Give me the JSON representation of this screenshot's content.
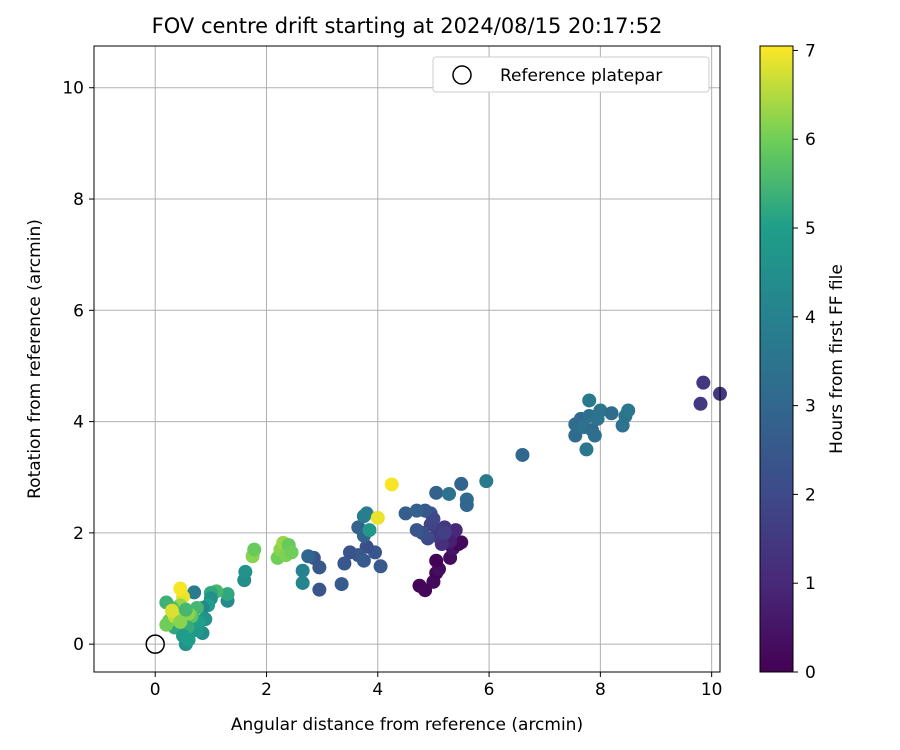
{
  "chart_data": {
    "type": "scatter",
    "title": "FOV centre drift starting at 2024/08/15 20:17:52",
    "xlabel": "Angular distance from reference (arcmin)",
    "ylabel": "Rotation from reference (arcmin)",
    "xlim": [
      -1.1,
      10.15
    ],
    "ylim": [
      -0.5,
      10.75
    ],
    "xticks": [
      0,
      2,
      4,
      6,
      8,
      10
    ],
    "yticks": [
      0,
      2,
      4,
      6,
      8,
      10
    ],
    "grid": true,
    "legend": {
      "position": "top-right",
      "entries": [
        "Reference platepar"
      ]
    },
    "reference_point": {
      "x": 0,
      "y": 0,
      "label": "Reference platepar"
    },
    "colorbar": {
      "label": "Hours from first FF file",
      "colormap": "viridis",
      "range": [
        0,
        7.05
      ],
      "ticks": [
        0,
        1,
        2,
        3,
        4,
        5,
        6,
        7
      ]
    },
    "points": [
      {
        "x": 4.75,
        "y": 1.05,
        "c": 0.1
      },
      {
        "x": 4.85,
        "y": 0.97,
        "c": 0.15
      },
      {
        "x": 5.0,
        "y": 1.12,
        "c": 0.2
      },
      {
        "x": 5.05,
        "y": 1.28,
        "c": 0.1
      },
      {
        "x": 5.1,
        "y": 1.35,
        "c": 0.3
      },
      {
        "x": 5.05,
        "y": 1.5,
        "c": 0.05
      },
      {
        "x": 5.3,
        "y": 1.55,
        "c": 0.3
      },
      {
        "x": 5.35,
        "y": 1.72,
        "c": 0.5
      },
      {
        "x": 5.45,
        "y": 1.8,
        "c": 0.1
      },
      {
        "x": 5.5,
        "y": 1.83,
        "c": 0.2
      },
      {
        "x": 5.4,
        "y": 2.05,
        "c": 1.0
      },
      {
        "x": 5.3,
        "y": 1.85,
        "c": 0.8
      },
      {
        "x": 5.15,
        "y": 1.8,
        "c": 1.2
      },
      {
        "x": 5.2,
        "y": 2.1,
        "c": 1.4
      },
      {
        "x": 5.1,
        "y": 2.05,
        "c": 1.6
      },
      {
        "x": 5.05,
        "y": 1.95,
        "c": 1.5
      },
      {
        "x": 4.95,
        "y": 2.15,
        "c": 1.8
      },
      {
        "x": 4.9,
        "y": 1.9,
        "c": 2.0
      },
      {
        "x": 4.8,
        "y": 2.0,
        "c": 2.2
      },
      {
        "x": 4.95,
        "y": 2.35,
        "c": 2.3
      },
      {
        "x": 5.0,
        "y": 2.25,
        "c": 1.9
      },
      {
        "x": 5.2,
        "y": 2.0,
        "c": 1.7
      },
      {
        "x": 4.7,
        "y": 2.05,
        "c": 2.4
      },
      {
        "x": 4.85,
        "y": 2.4,
        "c": 2.5
      },
      {
        "x": 5.05,
        "y": 2.72,
        "c": 2.8
      },
      {
        "x": 5.28,
        "y": 2.7,
        "c": 3.5
      },
      {
        "x": 5.5,
        "y": 2.88,
        "c": 2.9
      },
      {
        "x": 5.6,
        "y": 2.6,
        "c": 3.1
      },
      {
        "x": 5.6,
        "y": 2.5,
        "c": 3.0
      },
      {
        "x": 5.95,
        "y": 2.93,
        "c": 3.7
      },
      {
        "x": 6.6,
        "y": 3.4,
        "c": 3.0
      },
      {
        "x": 4.5,
        "y": 2.35,
        "c": 2.7
      },
      {
        "x": 4.7,
        "y": 2.4,
        "c": 2.8
      },
      {
        "x": 4.05,
        "y": 1.4,
        "c": 2.6
      },
      {
        "x": 3.95,
        "y": 1.65,
        "c": 2.4
      },
      {
        "x": 3.8,
        "y": 1.75,
        "c": 2.2
      },
      {
        "x": 3.65,
        "y": 1.6,
        "c": 2.5
      },
      {
        "x": 3.75,
        "y": 1.5,
        "c": 2.6
      },
      {
        "x": 3.5,
        "y": 1.65,
        "c": 2.3
      },
      {
        "x": 3.4,
        "y": 1.45,
        "c": 2.5
      },
      {
        "x": 3.35,
        "y": 1.08,
        "c": 2.6
      },
      {
        "x": 2.95,
        "y": 0.98,
        "c": 2.4
      },
      {
        "x": 2.95,
        "y": 1.38,
        "c": 2.5
      },
      {
        "x": 2.85,
        "y": 1.55,
        "c": 2.4
      },
      {
        "x": 2.75,
        "y": 1.58,
        "c": 3.0
      },
      {
        "x": 3.65,
        "y": 2.1,
        "c": 2.8
      },
      {
        "x": 3.75,
        "y": 1.95,
        "c": 2.9
      },
      {
        "x": 3.75,
        "y": 2.3,
        "c": 3.8
      },
      {
        "x": 3.8,
        "y": 2.35,
        "c": 3.9
      },
      {
        "x": 3.85,
        "y": 2.05,
        "c": 4.8
      },
      {
        "x": 2.65,
        "y": 1.32,
        "c": 4.0
      },
      {
        "x": 2.65,
        "y": 1.1,
        "c": 4.1
      },
      {
        "x": 4.0,
        "y": 2.27,
        "c": 6.9
      },
      {
        "x": 4.25,
        "y": 2.87,
        "c": 7.0
      },
      {
        "x": 7.55,
        "y": 3.75,
        "c": 3.1
      },
      {
        "x": 7.55,
        "y": 3.95,
        "c": 3.2
      },
      {
        "x": 7.65,
        "y": 4.05,
        "c": 3.1
      },
      {
        "x": 7.7,
        "y": 3.9,
        "c": 3.4
      },
      {
        "x": 7.75,
        "y": 3.5,
        "c": 3.6
      },
      {
        "x": 7.8,
        "y": 4.1,
        "c": 3.3
      },
      {
        "x": 7.8,
        "y": 4.38,
        "c": 3.7
      },
      {
        "x": 7.85,
        "y": 3.85,
        "c": 3.2
      },
      {
        "x": 7.9,
        "y": 3.75,
        "c": 3.3
      },
      {
        "x": 7.95,
        "y": 4.05,
        "c": 3.4
      },
      {
        "x": 8.0,
        "y": 4.2,
        "c": 3.5
      },
      {
        "x": 8.2,
        "y": 4.15,
        "c": 3.2
      },
      {
        "x": 8.4,
        "y": 3.93,
        "c": 3.4
      },
      {
        "x": 8.45,
        "y": 4.1,
        "c": 3.5
      },
      {
        "x": 8.5,
        "y": 4.2,
        "c": 3.6
      },
      {
        "x": 9.8,
        "y": 4.32,
        "c": 1.5
      },
      {
        "x": 9.85,
        "y": 4.7,
        "c": 1.4
      },
      {
        "x": 10.15,
        "y": 4.5,
        "c": 1.5
      },
      {
        "x": 1.6,
        "y": 1.15,
        "c": 4.4
      },
      {
        "x": 1.62,
        "y": 1.3,
        "c": 4.6
      },
      {
        "x": 1.75,
        "y": 1.58,
        "c": 6.2
      },
      {
        "x": 1.78,
        "y": 1.7,
        "c": 5.9
      },
      {
        "x": 2.2,
        "y": 1.55,
        "c": 6.0
      },
      {
        "x": 2.25,
        "y": 1.7,
        "c": 6.2
      },
      {
        "x": 2.3,
        "y": 1.82,
        "c": 6.3
      },
      {
        "x": 2.35,
        "y": 1.6,
        "c": 6.1
      },
      {
        "x": 2.4,
        "y": 1.78,
        "c": 5.9
      },
      {
        "x": 2.45,
        "y": 1.65,
        "c": 6.0
      },
      {
        "x": 1.3,
        "y": 0.78,
        "c": 4.3
      },
      {
        "x": 1.3,
        "y": 0.9,
        "c": 5.2
      },
      {
        "x": 1.1,
        "y": 0.95,
        "c": 5.5
      },
      {
        "x": 1.0,
        "y": 0.92,
        "c": 5.2
      },
      {
        "x": 1.0,
        "y": 0.82,
        "c": 4.5
      },
      {
        "x": 0.95,
        "y": 0.7,
        "c": 5.0
      },
      {
        "x": 0.85,
        "y": 0.65,
        "c": 4.2
      },
      {
        "x": 0.9,
        "y": 0.45,
        "c": 4.6
      },
      {
        "x": 0.85,
        "y": 0.2,
        "c": 4.4
      },
      {
        "x": 0.75,
        "y": 0.25,
        "c": 4.8
      },
      {
        "x": 0.78,
        "y": 0.4,
        "c": 5.0
      },
      {
        "x": 0.7,
        "y": 0.93,
        "c": 3.8
      },
      {
        "x": 0.75,
        "y": 0.65,
        "c": 5.5
      },
      {
        "x": 0.65,
        "y": 0.5,
        "c": 5.8
      },
      {
        "x": 0.6,
        "y": 0.55,
        "c": 6.2
      },
      {
        "x": 0.58,
        "y": 0.3,
        "c": 5.3
      },
      {
        "x": 0.55,
        "y": 0.0,
        "c": 4.5
      },
      {
        "x": 0.5,
        "y": 0.85,
        "c": 6.9
      },
      {
        "x": 0.45,
        "y": 1.0,
        "c": 7.0
      },
      {
        "x": 0.45,
        "y": 0.7,
        "c": 6.3
      },
      {
        "x": 0.4,
        "y": 0.55,
        "c": 5.8
      },
      {
        "x": 0.35,
        "y": 0.3,
        "c": 5.2
      },
      {
        "x": 0.3,
        "y": 0.65,
        "c": 5.6
      },
      {
        "x": 0.25,
        "y": 0.42,
        "c": 5.9
      },
      {
        "x": 0.2,
        "y": 0.75,
        "c": 5.4
      },
      {
        "x": 0.2,
        "y": 0.35,
        "c": 6.0
      },
      {
        "x": 0.35,
        "y": 0.5,
        "c": 6.6
      },
      {
        "x": 0.5,
        "y": 0.15,
        "c": 4.9
      },
      {
        "x": 0.6,
        "y": 0.08,
        "c": 5.0
      },
      {
        "x": 0.45,
        "y": 0.4,
        "c": 6.2
      },
      {
        "x": 0.3,
        "y": 0.6,
        "c": 6.8
      },
      {
        "x": 0.55,
        "y": 0.62,
        "c": 5.5
      }
    ]
  }
}
